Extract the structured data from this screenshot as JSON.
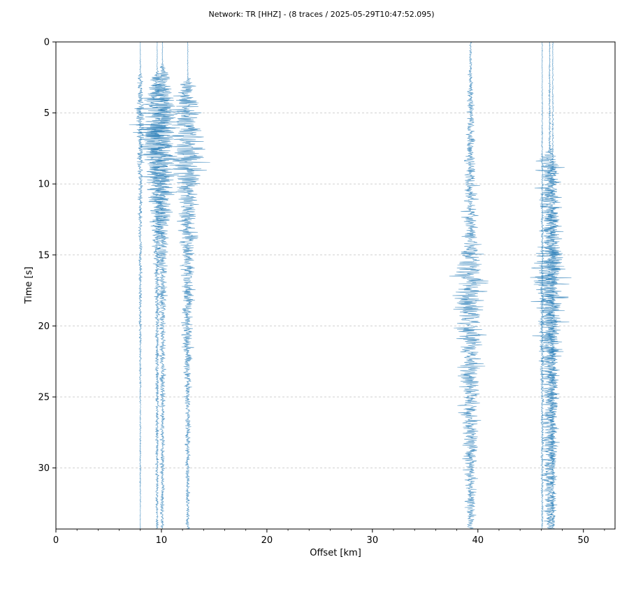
{
  "chart_data": {
    "type": "line",
    "title": "Network: TR [HHZ] - (8 traces / 2025-05-29T10:47:52.095)",
    "xlabel": "Offset [km]",
    "ylabel": "Time [s]",
    "xlim": [
      0,
      53
    ],
    "ylim": [
      0,
      34.3
    ],
    "y_inverted": true,
    "x_ticks": [
      "0",
      "10",
      "20",
      "30",
      "40",
      "50"
    ],
    "y_ticks": [
      "0",
      "5",
      "10",
      "15",
      "20",
      "25",
      "30"
    ],
    "grid": "horizontal dashed",
    "color": "#1f77b4",
    "seed": 7,
    "series": [
      {
        "offset": 8.0,
        "envelope": [
          [
            0,
            0.02
          ],
          [
            2,
            0.08
          ],
          [
            2.5,
            0.35
          ],
          [
            5,
            0.6
          ],
          [
            8,
            0.5
          ],
          [
            12,
            0.3
          ],
          [
            20,
            0.2
          ],
          [
            25,
            0.12
          ],
          [
            30,
            0.1
          ],
          [
            34.3,
            0.05
          ]
        ]
      },
      {
        "offset": 9.6,
        "envelope": [
          [
            0,
            0.02
          ],
          [
            2,
            0.1
          ],
          [
            2.8,
            1.5
          ],
          [
            4.5,
            3.0
          ],
          [
            6.5,
            3.5
          ],
          [
            9,
            2.5
          ],
          [
            12,
            1.2
          ],
          [
            16,
            0.5
          ],
          [
            22,
            0.3
          ],
          [
            34.3,
            0.2
          ]
        ]
      },
      {
        "offset": 10.1,
        "envelope": [
          [
            0,
            0.04
          ],
          [
            1.5,
            0.1
          ],
          [
            2.5,
            1.2
          ],
          [
            4.5,
            2.8
          ],
          [
            7,
            3.0
          ],
          [
            10,
            2.0
          ],
          [
            14,
            1.0
          ],
          [
            20,
            0.5
          ],
          [
            28,
            0.35
          ],
          [
            34.3,
            0.3
          ]
        ]
      },
      {
        "offset": 12.5,
        "envelope": [
          [
            0,
            0.05
          ],
          [
            2.5,
            0.1
          ],
          [
            3,
            1.5
          ],
          [
            5,
            2.5
          ],
          [
            8.5,
            2.8
          ],
          [
            11,
            1.7
          ],
          [
            15,
            1.2
          ],
          [
            20,
            0.9
          ],
          [
            25,
            0.5
          ],
          [
            34.3,
            0.3
          ]
        ]
      },
      {
        "offset": 39.3,
        "envelope": [
          [
            0,
            0.15
          ],
          [
            4,
            0.5
          ],
          [
            9,
            0.9
          ],
          [
            14,
            1.4
          ],
          [
            15,
            2.0
          ],
          [
            17.5,
            3.0
          ],
          [
            20,
            2.3
          ],
          [
            25,
            1.6
          ],
          [
            30,
            1.1
          ],
          [
            34.3,
            0.6
          ]
        ]
      },
      {
        "offset": 46.1,
        "envelope": [
          [
            0,
            0.05
          ],
          [
            4,
            0.08
          ],
          [
            8,
            0.12
          ],
          [
            14,
            0.2
          ],
          [
            22,
            0.25
          ],
          [
            34.3,
            0.15
          ]
        ]
      },
      {
        "offset": 46.8,
        "envelope": [
          [
            0,
            0.08
          ],
          [
            7.5,
            0.2
          ],
          [
            8.4,
            2.2
          ],
          [
            10,
            1.8
          ],
          [
            14,
            1.4
          ],
          [
            15,
            2.9
          ],
          [
            17,
            2.7
          ],
          [
            19.5,
            2.2
          ],
          [
            24,
            1.5
          ],
          [
            30,
            1.2
          ],
          [
            34.3,
            0.8
          ]
        ]
      },
      {
        "offset": 47.1,
        "envelope": [
          [
            0,
            0.05
          ],
          [
            8,
            0.15
          ],
          [
            9,
            0.9
          ],
          [
            15,
            1.5
          ],
          [
            20,
            1.0
          ],
          [
            28,
            0.6
          ],
          [
            34.3,
            0.4
          ]
        ]
      }
    ]
  }
}
